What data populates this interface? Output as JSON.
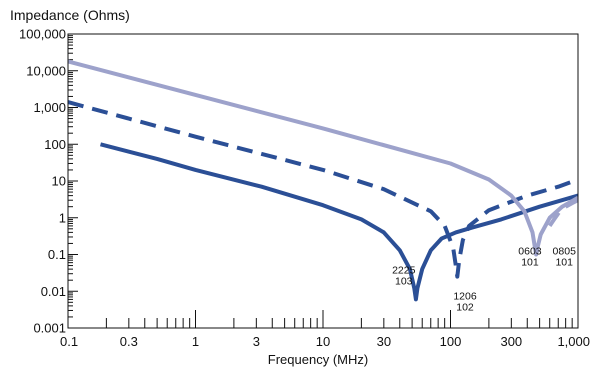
{
  "chart_data": {
    "type": "line",
    "title": "Impedance (Ohms)",
    "xlabel": "Frequency (MHz)",
    "ylabel": "",
    "x_scale": "log",
    "y_scale": "log",
    "xlim": [
      0.1,
      1000
    ],
    "ylim": [
      0.001,
      100000
    ],
    "grid": false,
    "x_ticks": [
      {
        "value": 0.1,
        "label": "0.1"
      },
      {
        "value": 0.3,
        "label": "0.3"
      },
      {
        "value": 1,
        "label": "1"
      },
      {
        "value": 3,
        "label": "3"
      },
      {
        "value": 10,
        "label": "10"
      },
      {
        "value": 30,
        "label": "30"
      },
      {
        "value": 100,
        "label": "100"
      },
      {
        "value": 300,
        "label": "300"
      },
      {
        "value": 1000,
        "label": "1,000"
      }
    ],
    "y_ticks": [
      {
        "value": 0.001,
        "label": "0.001"
      },
      {
        "value": 0.01,
        "label": "0.01"
      },
      {
        "value": 0.1,
        "label": "0.1"
      },
      {
        "value": 1,
        "label": "1"
      },
      {
        "value": 10,
        "label": "10"
      },
      {
        "value": 100,
        "label": "100"
      },
      {
        "value": 1000,
        "label": "1,000"
      },
      {
        "value": 10000,
        "label": "10,000"
      },
      {
        "value": 100000,
        "label": "100,000"
      }
    ],
    "series": [
      {
        "color": "#2b4f96",
        "style": "solid",
        "points": [
          [
            0.18,
            100
          ],
          [
            0.5,
            40
          ],
          [
            1,
            20
          ],
          [
            3.3,
            7
          ],
          [
            10,
            2.2
          ],
          [
            20,
            0.9
          ],
          [
            30,
            0.4
          ],
          [
            40,
            0.13
          ],
          [
            48,
            0.04
          ],
          [
            52,
            0.012
          ],
          [
            53.5,
            0.006
          ],
          [
            55,
            0.012
          ],
          [
            60,
            0.04
          ],
          [
            70,
            0.13
          ],
          [
            85,
            0.27
          ],
          [
            110,
            0.4
          ],
          [
            150,
            0.55
          ],
          [
            250,
            0.9
          ],
          [
            500,
            2
          ],
          [
            1000,
            4
          ]
        ]
      },
      {
        "color": "#2b4f96",
        "style": "dashed",
        "points": [
          [
            0.1,
            1400
          ],
          [
            1,
            160
          ],
          [
            10,
            20
          ],
          [
            30,
            6
          ],
          [
            70,
            1.5
          ],
          [
            90,
            0.6
          ],
          [
            105,
            0.15
          ],
          [
            110,
            0.05
          ],
          [
            113,
            0.025
          ],
          [
            117,
            0.07
          ],
          [
            125,
            0.25
          ],
          [
            140,
            0.6
          ],
          [
            200,
            1.6
          ],
          [
            400,
            4
          ],
          [
            700,
            7
          ],
          [
            1000,
            11
          ]
        ]
      },
      {
        "color": "#9da2cb",
        "style": "solid",
        "points": [
          [
            0.1,
            18000
          ],
          [
            1,
            2200
          ],
          [
            10,
            270
          ],
          [
            100,
            30
          ],
          [
            200,
            11
          ],
          [
            300,
            4
          ],
          [
            380,
            1.5
          ],
          [
            440,
            0.4
          ],
          [
            460,
            0.15
          ],
          [
            470,
            0.1
          ],
          [
            480,
            0.15
          ],
          [
            510,
            0.35
          ],
          [
            600,
            1
          ],
          [
            750,
            2
          ],
          [
            1000,
            3.5
          ]
        ]
      },
      {
        "color": "#9da2cb",
        "style": "dashed",
        "points": [
          [
            600,
            0.6
          ],
          [
            650,
            0.9
          ],
          [
            720,
            1.5
          ],
          [
            800,
            2
          ],
          [
            900,
            2.5
          ],
          [
            1000,
            3
          ]
        ]
      }
    ],
    "annotations": [
      {
        "lines": [
          "2225",
          "103"
        ],
        "x": 43,
        "y": 0.03
      },
      {
        "lines": [
          "1206",
          "102"
        ],
        "x": 130,
        "y": 0.006
      },
      {
        "lines": [
          "0603",
          "101"
        ],
        "x": 420,
        "y": 0.1
      },
      {
        "lines": [
          "0805",
          "101"
        ],
        "x": 780,
        "y": 0.1
      }
    ]
  }
}
